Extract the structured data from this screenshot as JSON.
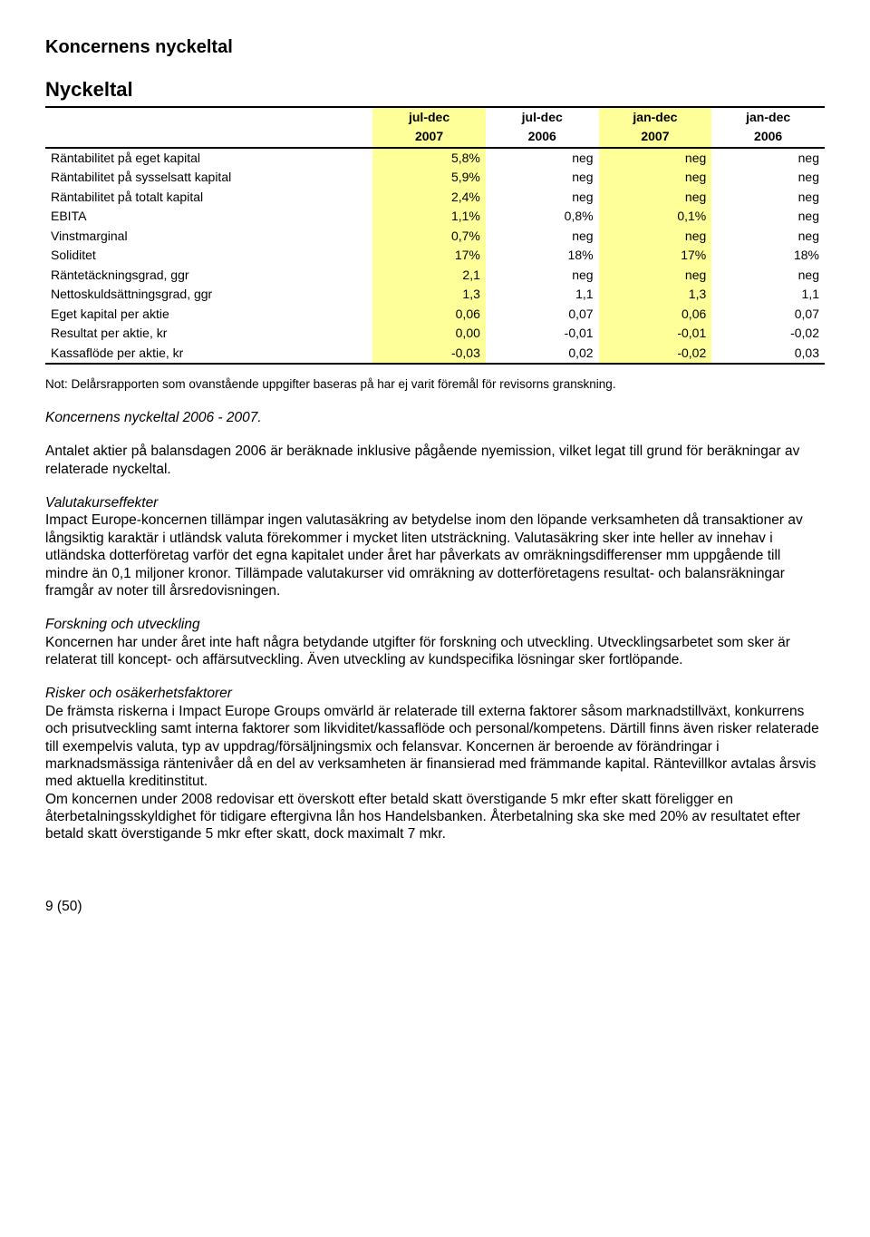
{
  "page": {
    "title": "Koncernens nyckeltal",
    "footer": "9 (50)"
  },
  "table": {
    "title": "Nyckeltal",
    "headers": [
      {
        "line1": "jul-dec",
        "line2": "2007",
        "highlight": true
      },
      {
        "line1": "jul-dec",
        "line2": "2006",
        "highlight": false
      },
      {
        "line1": "jan-dec",
        "line2": "2007",
        "highlight": true
      },
      {
        "line1": "jan-dec",
        "line2": "2006",
        "highlight": false
      }
    ],
    "rows": [
      {
        "label": "Räntabilitet på eget kapital",
        "cells": [
          "5,8%",
          "neg",
          "neg",
          "neg"
        ]
      },
      {
        "label": "Räntabilitet på sysselsatt kapital",
        "cells": [
          "5,9%",
          "neg",
          "neg",
          "neg"
        ]
      },
      {
        "label": "Räntabilitet på totalt kapital",
        "cells": [
          "2,4%",
          "neg",
          "neg",
          "neg"
        ]
      },
      {
        "label": "EBITA",
        "cells": [
          "1,1%",
          "0,8%",
          "0,1%",
          "neg"
        ]
      },
      {
        "label": "Vinstmarginal",
        "cells": [
          "0,7%",
          "neg",
          "neg",
          "neg"
        ]
      },
      {
        "label": "Soliditet",
        "cells": [
          "17%",
          "18%",
          "17%",
          "18%"
        ]
      },
      {
        "label": "Räntetäckningsgrad, ggr",
        "cells": [
          "2,1",
          "neg",
          "neg",
          "neg"
        ]
      },
      {
        "label": "Nettoskuldsättningsgrad, ggr",
        "cells": [
          "1,3",
          "1,1",
          "1,3",
          "1,1"
        ]
      },
      {
        "label": "Eget kapital per aktie",
        "cells": [
          "0,06",
          "0,07",
          "0,06",
          "0,07"
        ]
      },
      {
        "label": "Resultat per aktie, kr",
        "cells": [
          "0,00",
          "-0,01",
          "-0,01",
          "-0,02"
        ]
      },
      {
        "label": "Kassaflöde per aktie, kr",
        "cells": [
          "-0,03",
          "0,02",
          "-0,02",
          "0,03"
        ]
      }
    ],
    "highlight_cols": [
      0,
      2
    ],
    "highlight_color": "#ffff99",
    "border_color": "#000000",
    "font_size_pt": 10.5
  },
  "texts": {
    "note": "Not: Delårsrapporten som ovanstående uppgifter baseras på har ej varit föremål för revisorns granskning.",
    "para1_heading": "Koncernens nyckeltal 2006 - 2007.",
    "para2": "Antalet aktier på balansdagen 2006 är beräknade inklusive pågående nyemission, vilket legat till grund för beräkningar av relaterade nyckeltal.",
    "para3_heading": "Valutakurseffekter",
    "para3": "Impact Europe-koncernen tillämpar ingen valutasäkring av betydelse inom den löpande verksamheten då transaktioner av långsiktig karaktär i utländsk valuta förekommer i mycket liten utsträckning. Valutasäkring sker inte heller av innehav i utländska dotterföretag varför det egna kapitalet under året har påverkats av omräkningsdifferenser mm uppgående till mindre än 0,1 miljoner kronor. Tillämpade valutakurser vid omräkning av dotterföretagens resultat- och balansräkningar framgår av noter till årsredovisningen.",
    "para4_heading": "Forskning och utveckling",
    "para4": "Koncernen har under året inte haft några betydande utgifter för forskning och utveckling. Utvecklingsarbetet som sker är relaterat till koncept- och affärsutveckling. Även utveckling av kundspecifika lösningar sker fortlöpande.",
    "para5_heading": "Risker och osäkerhetsfaktorer",
    "para5": "De främsta riskerna i Impact Europe Groups omvärld är relaterade till externa faktorer såsom marknadstillväxt, konkurrens och prisutveckling samt interna faktorer som likviditet/kassaflöde och personal/kompetens. Därtill finns även risker relaterade till exempelvis valuta, typ av uppdrag/försäljningsmix och felansvar. Koncernen är beroende av förändringar i marknadsmässiga räntenivåer då en del av verksamheten är finansierad med främmande kapital. Räntevillkor avtalas årsvis med aktuella kreditinstitut.",
    "para6": "Om koncernen under 2008 redovisar ett överskott efter betald skatt överstigande 5 mkr efter skatt föreligger en återbetalningsskyldighet för tidigare eftergivna lån hos Handelsbanken. Återbetalning ska ske med 20% av resultatet efter betald skatt överstigande 5 mkr efter skatt, dock maximalt 7 mkr."
  }
}
